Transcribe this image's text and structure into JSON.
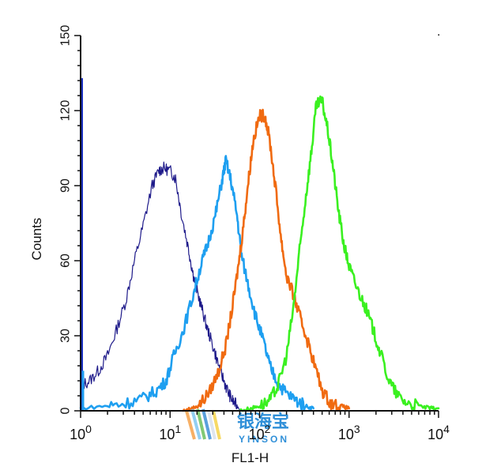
{
  "chart_data": {
    "type": "area",
    "xlabel": "FL1-H",
    "ylabel": "Counts",
    "x_scale": "log",
    "xlim": [
      1,
      10000
    ],
    "ylim": [
      0,
      150
    ],
    "x_ticks": [
      {
        "value": 1,
        "base": "10",
        "exp": "0"
      },
      {
        "value": 10,
        "base": "10",
        "exp": "1"
      },
      {
        "value": 100,
        "base": "10",
        "exp": "2"
      },
      {
        "value": 1000,
        "base": "10",
        "exp": "3"
      },
      {
        "value": 10000,
        "base": "10",
        "exp": "4"
      }
    ],
    "y_ticks": [
      0,
      30,
      60,
      90,
      120,
      150
    ],
    "grid": false,
    "series": [
      {
        "color": "#1e1a8a",
        "style": "thin",
        "x": [
          1,
          1.26,
          1.58,
          2,
          2.5,
          3.2,
          4,
          5,
          6.3,
          7.5,
          8.5,
          10,
          11.5,
          13.5,
          16,
          18,
          20,
          23,
          26,
          30,
          35,
          40,
          45,
          50,
          56,
          63
        ],
        "y": [
          10,
          12,
          16,
          22,
          32,
          44,
          60,
          74,
          90,
          96,
          97,
          96,
          93,
          78,
          65,
          55,
          48,
          40,
          33,
          26,
          18,
          12,
          7,
          4,
          2,
          0
        ]
      },
      {
        "color": "#1e9ff0",
        "style": "thick",
        "x": [
          1,
          2,
          3.2,
          5,
          7,
          9,
          11,
          14,
          18,
          22,
          26,
          32,
          38,
          42,
          48,
          56,
          63,
          75,
          90,
          110,
          130,
          160,
          200,
          260,
          320,
          400
        ],
        "y": [
          1,
          2,
          3,
          5,
          8,
          12,
          22,
          32,
          46,
          58,
          66,
          78,
          92,
          100,
          92,
          78,
          62,
          50,
          38,
          28,
          18,
          11,
          7,
          4,
          2,
          1
        ]
      },
      {
        "color": "#f06a10",
        "style": "thick",
        "x": [
          14,
          18,
          22,
          28,
          35,
          42,
          50,
          58,
          66,
          75,
          85,
          100,
          115,
          130,
          150,
          175,
          200,
          240,
          280,
          330,
          400,
          500,
          630,
          800,
          1000
        ],
        "y": [
          0,
          1,
          3,
          8,
          16,
          26,
          42,
          58,
          74,
          92,
          108,
          118,
          118,
          108,
          90,
          68,
          54,
          46,
          38,
          30,
          20,
          8,
          3,
          2,
          1
        ]
      },
      {
        "color": "#3af020",
        "style": "thick",
        "x": [
          60,
          80,
          100,
          130,
          160,
          200,
          240,
          280,
          330,
          380,
          430,
          500,
          580,
          660,
          760,
          880,
          1000,
          1200,
          1500,
          1800,
          2200,
          2800,
          3500,
          4500,
          6000,
          8000,
          10000
        ],
        "y": [
          0,
          1,
          2,
          4,
          10,
          22,
          42,
          64,
          86,
          104,
          122,
          124,
          112,
          98,
          80,
          66,
          58,
          50,
          42,
          34,
          24,
          12,
          6,
          3,
          2,
          1,
          1
        ]
      }
    ]
  },
  "watermark": {
    "main_text": "银海宝",
    "sub_text": "YINSON"
  },
  "corner_mark": {
    "text": "."
  }
}
